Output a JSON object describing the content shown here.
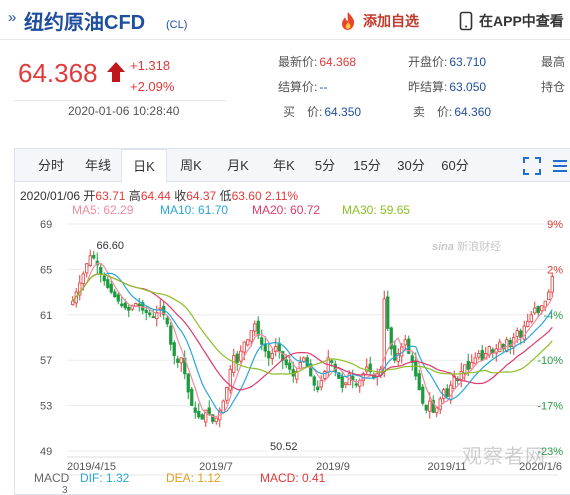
{
  "header": {
    "title_mark": "»",
    "title": "纽约原油CFD",
    "code": "(CL)",
    "add_watch_label": "添加自选",
    "app_label": "在APP中查看"
  },
  "quote": {
    "price": "64.368",
    "change": "+1.318",
    "change_pct": "+2.09%",
    "time": "2020-01-06 10:28:40",
    "fields": [
      {
        "label": "最新价:",
        "value": "64.368"
      },
      {
        "label": "开盘价:",
        "value": "63.710"
      },
      {
        "label": "最高",
        "value": ""
      },
      {
        "label": "结算价:",
        "value": "--"
      },
      {
        "label": "昨结算:",
        "value": "63.050"
      },
      {
        "label": "持仓",
        "value": ""
      },
      {
        "label": "买　价:",
        "value": "64.350"
      },
      {
        "label": "卖　价:",
        "value": "64.360"
      }
    ]
  },
  "tabs": [
    "分时",
    "年线",
    "日K",
    "周K",
    "月K",
    "年K",
    "5分",
    "15分",
    "30分",
    "60分"
  ],
  "active_tab": "日K",
  "ohlc": {
    "date": "2020/01/06",
    "open_label": "开",
    "open": "63.71",
    "high_label": "高",
    "high": "64.44",
    "close_label": "收",
    "close": "64.37",
    "low_label": "低",
    "low": "63.60",
    "pct": "2.11%"
  },
  "ma": [
    {
      "label": "MA5: 62.29",
      "color": "#f08ca0"
    },
    {
      "label": "MA10: 61.70",
      "color": "#2aa7d8"
    },
    {
      "label": "MA20: 60.72",
      "color": "#e0396b"
    },
    {
      "label": "MA30: 59.65",
      "color": "#8cbf26"
    }
  ],
  "watermark": "新浪财经",
  "watermark_brand": "sina",
  "bottom_watermark": "观察者网",
  "macd": [
    {
      "label": "MACD",
      "color": "#666666"
    },
    {
      "label": "DIF: 1.32",
      "color": "#2aa7d8"
    },
    {
      "label": "DEA: 1.12",
      "color": "#e0a020"
    },
    {
      "label": "MACD: 0.41",
      "color": "#e23a3a"
    }
  ],
  "macd_axis_top": "3",
  "chart_data": {
    "type": "candlestick",
    "y_ticks": [
      "69",
      "65",
      "61",
      "57",
      "53",
      "49"
    ],
    "y_range": [
      49,
      69
    ],
    "pct_ticks": [
      "9%",
      "2%",
      "-4%",
      "-10%",
      "-17%",
      "-23%"
    ],
    "x_ticks": [
      "2019/4/15",
      "2019/7",
      "2019/9",
      "2019/11",
      "2020/1/6"
    ],
    "annotations": [
      {
        "text": "66.60",
        "value": 66.6
      },
      {
        "text": "50.52",
        "value": 50.52
      }
    ],
    "close": [
      62.2,
      63.0,
      63.8,
      64.6,
      65.5,
      66.2,
      66.0,
      65.4,
      64.6,
      64.0,
      63.4,
      63.0,
      62.6,
      62.2,
      61.8,
      61.6,
      61.4,
      61.8,
      62.0,
      61.8,
      61.4,
      61.2,
      61.0,
      60.8,
      61.2,
      61.6,
      61.0,
      60.2,
      58.4,
      57.4,
      56.8,
      57.2,
      55.8,
      54.2,
      53.0,
      52.4,
      52.0,
      51.8,
      52.6,
      52.2,
      51.6,
      51.9,
      52.6,
      53.4,
      54.6,
      56.2,
      57.4,
      56.8,
      57.8,
      58.6,
      58.8,
      59.6,
      60.2,
      59.2,
      58.4,
      57.8,
      57.2,
      57.6,
      58.2,
      57.8,
      57.0,
      56.6,
      56.2,
      55.6,
      56.0,
      56.8,
      57.2,
      56.4,
      55.6,
      54.8,
      54.4,
      55.2,
      56.0,
      57.2,
      56.8,
      56.0,
      55.4,
      54.6,
      55.0,
      55.8,
      55.2,
      54.8,
      55.2,
      55.8,
      56.4,
      56.0,
      55.4,
      55.8,
      56.2,
      62.4,
      59.8,
      58.0,
      57.0,
      57.6,
      58.2,
      58.8,
      57.6,
      56.8,
      55.6,
      54.4,
      53.2,
      52.6,
      53.4,
      52.4,
      52.8,
      53.6,
      54.4,
      53.8,
      54.8,
      55.6,
      55.2,
      56.0,
      56.6,
      56.2,
      56.8,
      57.2,
      57.6,
      57.0,
      57.6,
      58.2,
      57.6,
      58.0,
      58.6,
      58.0,
      58.8,
      58.2,
      59.0,
      59.6,
      59.0,
      60.0,
      60.4,
      61.0,
      61.6,
      61.2,
      61.8,
      62.2,
      63.0,
      64.37
    ]
  }
}
